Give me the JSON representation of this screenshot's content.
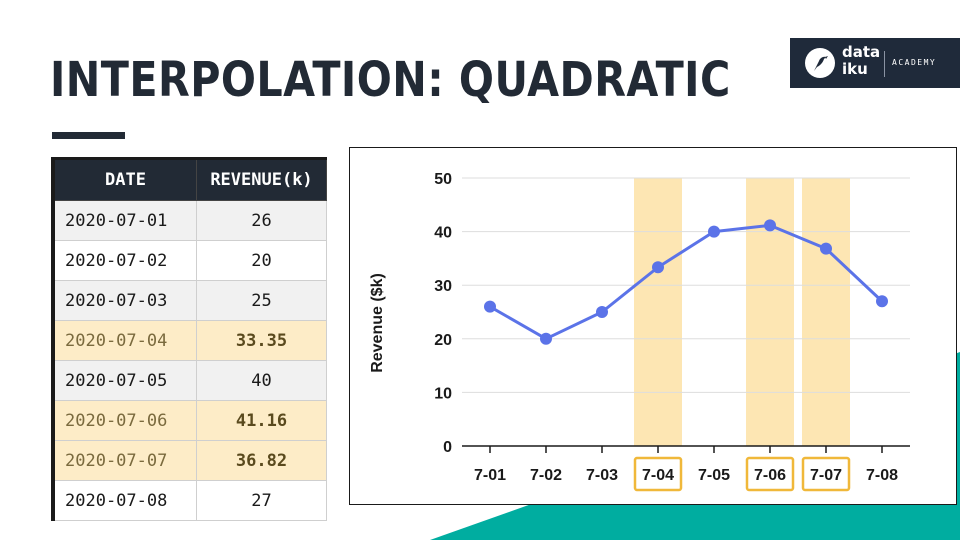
{
  "slide": {
    "title": "INTERPOLATION: QUADRATIC",
    "colors": {
      "navy": "#222a35",
      "teal": "#00ada0",
      "highlight": "#fde6b3",
      "highlight_border": "#f0b83a",
      "line": "#5b73e8"
    }
  },
  "logo": {
    "word_line1": "data",
    "word_line2": "iku",
    "academy": "ACADEMY",
    "icon": "bird-icon"
  },
  "table": {
    "headers": {
      "date": "DATE",
      "revenue": "REVENUE(k)"
    },
    "rows": [
      {
        "date": "2020-07-01",
        "revenue": "26",
        "interpolated": false
      },
      {
        "date": "2020-07-02",
        "revenue": "20",
        "interpolated": false
      },
      {
        "date": "2020-07-03",
        "revenue": "25",
        "interpolated": false
      },
      {
        "date": "2020-07-04",
        "revenue": "33.35",
        "interpolated": true
      },
      {
        "date": "2020-07-05",
        "revenue": "40",
        "interpolated": false
      },
      {
        "date": "2020-07-06",
        "revenue": "41.16",
        "interpolated": true
      },
      {
        "date": "2020-07-07",
        "revenue": "36.82",
        "interpolated": true
      },
      {
        "date": "2020-07-08",
        "revenue": "27",
        "interpolated": false
      }
    ]
  },
  "chart_data": {
    "type": "line",
    "categories": [
      "7-01",
      "7-02",
      "7-03",
      "7-04",
      "7-05",
      "7-06",
      "7-07",
      "7-08"
    ],
    "values": [
      26,
      20,
      25,
      33.35,
      40,
      41.16,
      36.82,
      27
    ],
    "highlighted": [
      "7-04",
      "7-06",
      "7-07"
    ],
    "ylabel": "Revenue ($k)",
    "xlabel": "",
    "ylim": [
      0,
      50
    ],
    "yticks": [
      0,
      10,
      20,
      30,
      40,
      50
    ],
    "grid": true
  }
}
